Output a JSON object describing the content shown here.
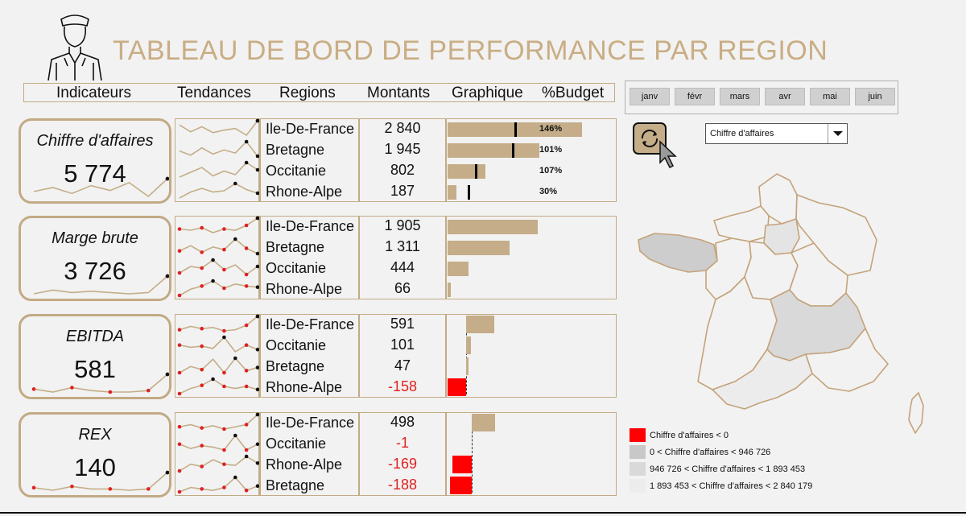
{
  "title": "TABLEAU DE BORD DE PERFORMANCE PAR REGION",
  "headers": {
    "indicateurs": "Indicateurs",
    "tendances": "Tendances",
    "regions": "Regions",
    "montants": "Montants",
    "graphique": "Graphique",
    "budget": "%Budget"
  },
  "months": [
    "janv",
    "févr",
    "mars",
    "avr",
    "mai",
    "juin"
  ],
  "selector": {
    "value": "Chiffre d'affaires"
  },
  "icons": {
    "logo": "doorman-icon",
    "refresh": "refresh-icon",
    "cursor": "cursor-icon",
    "dropdown": "triangle-down-icon"
  },
  "colors": {
    "accent": "#c4ad88",
    "title": "#c9ad84",
    "negative": "#ff0000",
    "negative_text": "#e02020"
  },
  "kpis": [
    {
      "label": "Chiffre d'affaires",
      "value": "5 774",
      "trend": [
        2,
        2.4,
        1.8,
        2.6,
        2.1,
        2.9,
        1.5,
        3.3
      ],
      "rows": [
        {
          "region": "Ile-De-France",
          "amount": "2 840",
          "value": 2840,
          "pct": "146%",
          "budget_frac": 0.69,
          "trend": [
            3,
            2.2,
            2.8,
            2.1,
            2.4,
            2.6,
            1.8,
            3.5
          ]
        },
        {
          "region": "Bretagne",
          "amount": "1 945",
          "value": 1945,
          "pct": "101%",
          "budget_frac": 0.67,
          "trend": [
            2.5,
            2.1,
            2.8,
            2.2,
            2.6,
            2.3,
            3.4,
            2
          ]
        },
        {
          "region": "Occitanie",
          "amount": "802",
          "value": 802,
          "pct": "107%",
          "budget_frac": 0.28,
          "trend": [
            2,
            2.4,
            2.8,
            2.1,
            2.5,
            2.2,
            3.2,
            2.6
          ]
        },
        {
          "region": "Rhone-Alpe",
          "amount": "187",
          "value": 187,
          "pct": "30%",
          "budget_frac": 0.21,
          "trend": [
            1.8,
            2.3,
            2.6,
            2.3,
            2.4,
            3,
            2.5,
            2.2
          ]
        }
      ]
    },
    {
      "label": "Marge brute",
      "value": "3 726",
      "trend": [
        2,
        2.3,
        2.1,
        2.2,
        2.1,
        2,
        2.1,
        3.4
      ],
      "rows": [
        {
          "region": "Ile-De-France",
          "amount": "1 905",
          "value": 1905,
          "trend": [
            2.6,
            2.5,
            2.7,
            2.3,
            2.6,
            2.5,
            2.9,
            3.5
          ]
        },
        {
          "region": "Bretagne",
          "amount": "1 311",
          "value": 1311,
          "trend": [
            2.4,
            2.8,
            2.3,
            2.7,
            2.5,
            3.3,
            2.6,
            2.2
          ]
        },
        {
          "region": "Occitanie",
          "amount": "444",
          "value": 444,
          "trend": [
            2.2,
            2.6,
            2.5,
            3,
            2.4,
            2.7,
            2.1,
            2.6
          ]
        },
        {
          "region": "Rhone-Alpe",
          "amount": "66",
          "value": 66,
          "trend": [
            1.5,
            2.1,
            2.4,
            2.9,
            2.2,
            2.6,
            2.4,
            2.3
          ]
        }
      ]
    },
    {
      "label": "EBITDA",
      "value": "581",
      "trend": [
        2.2,
        2,
        2.3,
        2.1,
        2,
        2,
        2.1,
        3.2
      ],
      "rows": [
        {
          "region": "Ile-De-France",
          "amount": "591",
          "value": 591,
          "trend": [
            2.3,
            2.6,
            2.4,
            2.5,
            2.2,
            2.3,
            2.7,
            3.5
          ]
        },
        {
          "region": "Occitanie",
          "amount": "101",
          "value": 101,
          "trend": [
            2.6,
            2.4,
            2.5,
            2.3,
            3.3,
            2,
            2.6,
            2.2
          ]
        },
        {
          "region": "Bretagne",
          "amount": "47",
          "value": 47,
          "trend": [
            2,
            2.6,
            2.3,
            3.3,
            2,
            3.4,
            2.2,
            2.5
          ]
        },
        {
          "region": "Rhone-Alpe",
          "amount": "-158",
          "value": -158,
          "trend": [
            1.8,
            2.3,
            2.6,
            3.2,
            2.5,
            2.3,
            2.5,
            2.2
          ]
        }
      ]
    },
    {
      "label": "REX",
      "value": "140",
      "trend": [
        2.2,
        2,
        2.3,
        2.1,
        2.1,
        2,
        2.1,
        3.4
      ],
      "rows": [
        {
          "region": "Ile-De-France",
          "amount": "498",
          "value": 498,
          "trend": [
            2.4,
            2.6,
            2.3,
            2.5,
            2.2,
            2.4,
            2.6,
            3.5
          ]
        },
        {
          "region": "Occitanie",
          "amount": "-1",
          "value": -1,
          "trend": [
            2.6,
            2.3,
            2.5,
            2.4,
            2.2,
            3.2,
            2.2,
            2.6
          ]
        },
        {
          "region": "Rhone-Alpe",
          "amount": "-169",
          "value": -169,
          "trend": [
            1.8,
            2.4,
            2.2,
            2.8,
            2.4,
            2.3,
            3.1,
            2.5
          ]
        },
        {
          "region": "Bretagne",
          "amount": "-188",
          "value": -188,
          "trend": [
            2,
            2.3,
            2.2,
            2.1,
            2.3,
            3,
            2.1,
            2.4
          ]
        }
      ]
    }
  ],
  "legend": [
    {
      "label": "Chiffre d'affaires < 0",
      "color": "#ff0000"
    },
    {
      "label": "0 < Chiffre d'affaires < 946 726",
      "color": "#c8c8c8"
    },
    {
      "label": "946 726 < Chiffre d'affaires < 1 893 453",
      "color": "#d9d9d9"
    },
    {
      "label": "1 893 453 < Chiffre d'affaires < 2 840 179",
      "color": "#ececec"
    }
  ]
}
